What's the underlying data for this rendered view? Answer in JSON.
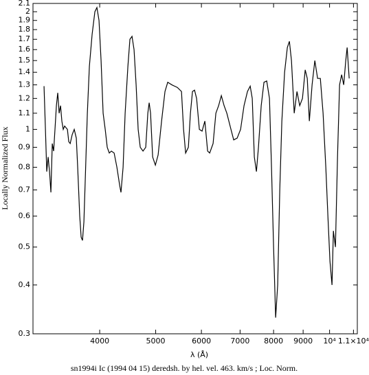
{
  "chart_data": {
    "type": "line",
    "caption": "sn1994i Ic (1994 04 15) deredsh. by hel. vel.   463. km/s ;  Loc. Norm.",
    "xlabel": "λ (Å)",
    "ylabel": "Locally Normalized Flux",
    "xscale": "log",
    "yscale": "log",
    "color": "#000000",
    "xlim": [
      3066,
      11170
    ],
    "ylim": [
      0.3,
      2.1
    ],
    "xticks": [
      4000,
      5000,
      6000,
      7000,
      8000,
      9000,
      {
        "value": 10000,
        "label": "10⁴"
      },
      {
        "value": 11000,
        "label": "1.1×10⁴"
      }
    ],
    "yticks": [
      0.3,
      0.4,
      0.5,
      0.6,
      0.7,
      0.8,
      0.9,
      1,
      1.1,
      1.2,
      1.3,
      1.4,
      1.5,
      1.6,
      1.7,
      1.8,
      1.9,
      2,
      2.1
    ],
    "x": [
      3204,
      3222,
      3239,
      3257,
      3275,
      3293,
      3311,
      3329,
      3347,
      3366,
      3384,
      3403,
      3422,
      3440,
      3459,
      3478,
      3517,
      3536,
      3556,
      3585,
      3614,
      3644,
      3664,
      3694,
      3715,
      3735,
      3756,
      3777,
      3808,
      3839,
      3881,
      3924,
      3956,
      3989,
      4022,
      4055,
      4089,
      4122,
      4156,
      4191,
      4237,
      4284,
      4331,
      4354,
      4391,
      4427,
      4476,
      4512,
      4550,
      4587,
      4625,
      4663,
      4702,
      4754,
      4806,
      4846,
      4872,
      4899,
      4940,
      4994,
      5049,
      5119,
      5189,
      5246,
      5334,
      5452,
      5542,
      5588,
      5634,
      5696,
      5743,
      5790,
      5838,
      5886,
      5951,
      6016,
      6083,
      6150,
      6201,
      6286,
      6356,
      6426,
      6496,
      6568,
      6640,
      6750,
      6824,
      6919,
      7014,
      7111,
      7209,
      7288,
      7348,
      7409,
      7471,
      7532,
      7615,
      7699,
      7784,
      7870,
      7934,
      8000,
      8066,
      8132,
      8200,
      8268,
      8359,
      8451,
      8521,
      8591,
      8686,
      8782,
      8878,
      8976,
      9075,
      9150,
      9226,
      9327,
      9430,
      9534,
      9639,
      9745,
      9852,
      9934,
      10016,
      10098,
      10154,
      10237,
      10322,
      10407,
      10493,
      10580,
      10667,
      10726,
      10814
    ],
    "values": [
      1.29,
      1.0,
      0.78,
      0.85,
      0.78,
      0.69,
      0.92,
      0.88,
      1.0,
      1.15,
      1.24,
      1.1,
      1.15,
      1.05,
      1.0,
      1.02,
      1.0,
      0.93,
      0.92,
      0.97,
      1.0,
      0.95,
      0.8,
      0.6,
      0.53,
      0.52,
      0.58,
      0.75,
      1.1,
      1.45,
      1.75,
      2.0,
      2.05,
      1.9,
      1.5,
      1.1,
      1.0,
      0.9,
      0.87,
      0.88,
      0.87,
      0.8,
      0.72,
      0.69,
      0.8,
      1.1,
      1.45,
      1.7,
      1.73,
      1.6,
      1.3,
      1.0,
      0.9,
      0.88,
      0.9,
      1.1,
      1.17,
      1.1,
      0.85,
      0.81,
      0.86,
      1.05,
      1.25,
      1.32,
      1.3,
      1.28,
      1.25,
      1.0,
      0.87,
      0.9,
      1.1,
      1.25,
      1.26,
      1.2,
      1.0,
      0.99,
      1.05,
      0.88,
      0.87,
      0.92,
      1.1,
      1.15,
      1.22,
      1.15,
      1.1,
      1.0,
      0.94,
      0.95,
      1.0,
      1.15,
      1.25,
      1.29,
      1.2,
      0.85,
      0.78,
      0.9,
      1.15,
      1.32,
      1.33,
      1.2,
      0.8,
      0.5,
      0.33,
      0.4,
      0.7,
      1.05,
      1.4,
      1.62,
      1.68,
      1.5,
      1.1,
      1.25,
      1.15,
      1.2,
      1.42,
      1.35,
      1.05,
      1.3,
      1.5,
      1.35,
      1.35,
      1.1,
      0.8,
      0.6,
      0.46,
      0.4,
      0.55,
      0.5,
      0.85,
      1.3,
      1.38,
      1.3,
      1.5,
      1.62,
      1.35
    ]
  }
}
